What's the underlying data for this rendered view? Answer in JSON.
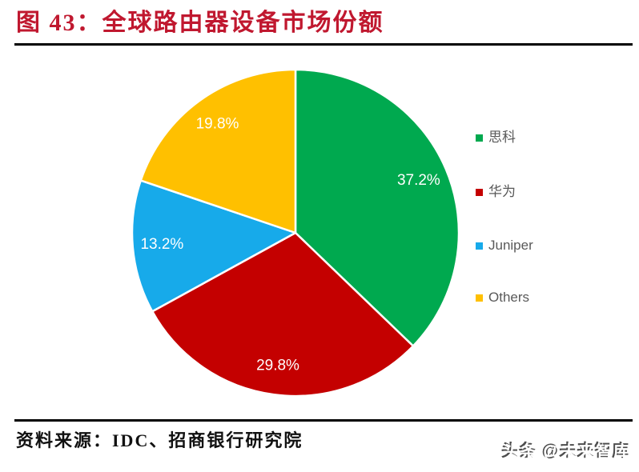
{
  "header": {
    "title": "图 43：全球路由器设备市场份额",
    "title_color": "#C0182F"
  },
  "chart_data": {
    "type": "pie",
    "title": "全球路由器设备市场份额",
    "series": [
      {
        "name": "思科",
        "value": 37.2,
        "label": "37.2%",
        "color": "#00A94F"
      },
      {
        "name": "华为",
        "value": 29.8,
        "label": "29.8%",
        "color": "#C40000"
      },
      {
        "name": "Juniper",
        "value": 13.2,
        "label": "13.2%",
        "color": "#17AAEA"
      },
      {
        "name": "Others",
        "value": 19.8,
        "label": "19.8%",
        "color": "#FFC000"
      }
    ],
    "total": 100,
    "start_angle_deg": 0,
    "direction": "clockwise",
    "slice_label_color": "#FFFFFF",
    "slice_stroke_color": "#FFFFFF",
    "legend_position": "right",
    "legend_text_color": "#595959"
  },
  "footer": {
    "source": "资料来源：IDC、招商银行研究院",
    "watermark": "头条 @未来智库"
  }
}
